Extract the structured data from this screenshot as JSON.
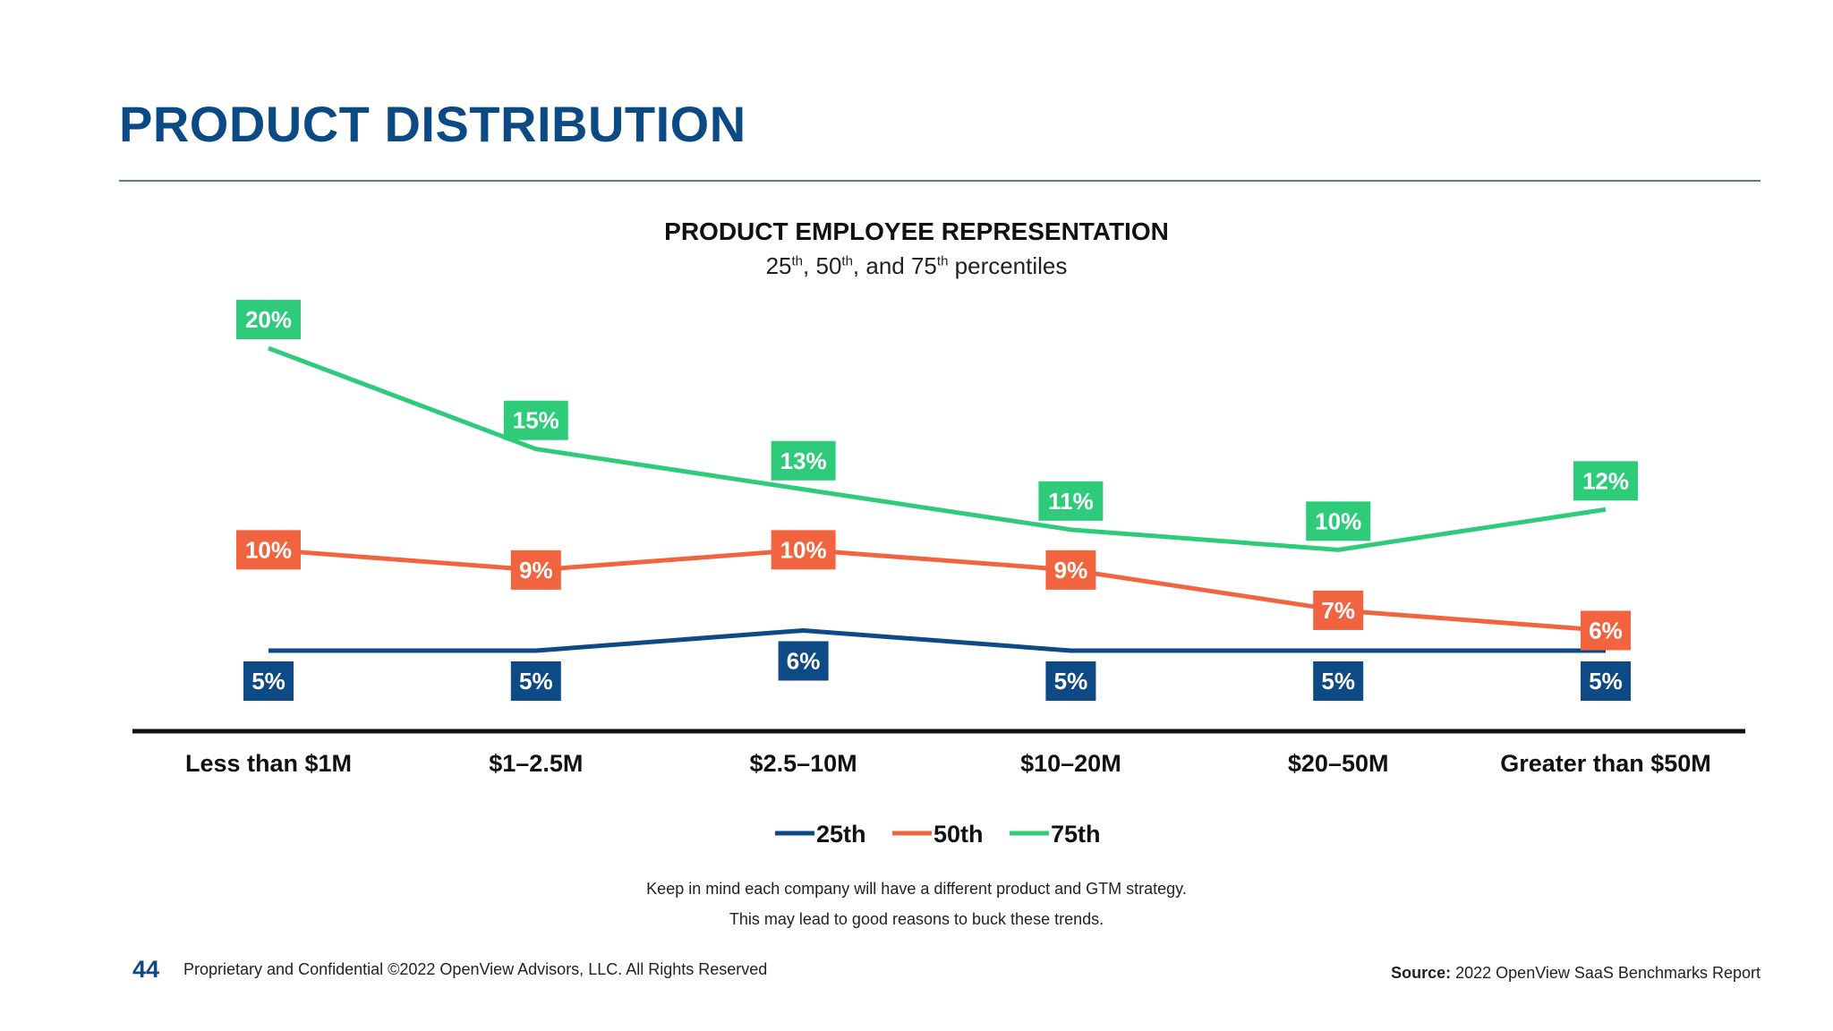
{
  "header": {
    "title": "PRODUCT DISTRIBUTION"
  },
  "chart_data": {
    "type": "line",
    "title": "PRODUCT EMPLOYEE REPRESENTATION",
    "subtitle": {
      "a": "25",
      "b": "th",
      "c": ", 50",
      "d": "th",
      "e": ", and 75",
      "f": "th",
      "g": " percentiles"
    },
    "categories": [
      "Less than $1M",
      "$1–2.5M",
      "$2.5–10M",
      "$10–20M",
      "$20–50M",
      "Greater than $50M"
    ],
    "series": [
      {
        "name": "25th",
        "color": "#0d4a86",
        "values": [
          5,
          5,
          6,
          5,
          5,
          5
        ],
        "labels": [
          "5%",
          "5%",
          "6%",
          "5%",
          "5%",
          "5%"
        ]
      },
      {
        "name": "50th",
        "color": "#f26440",
        "values": [
          10,
          9,
          10,
          9,
          7,
          6
        ],
        "labels": [
          "10%",
          "9%",
          "10%",
          "9%",
          "7%",
          "6%"
        ]
      },
      {
        "name": "75th",
        "color": "#2ecc7a",
        "values": [
          20,
          15,
          13,
          11,
          10,
          12
        ],
        "labels": [
          "20%",
          "15%",
          "13%",
          "11%",
          "10%",
          "12%"
        ]
      }
    ],
    "value_unit": "%",
    "grid": false,
    "legend_position": "bottom"
  },
  "notes": [
    "Keep in mind each company will have a different product and GTM strategy.",
    "This may lead to good reasons to buck these trends."
  ],
  "footer": {
    "page": "44",
    "confidential": "Proprietary and Confidential ©2022 OpenView Advisors, LLC. All Rights Reserved",
    "source_label": "Source:",
    "source_text": " 2022 OpenView SaaS Benchmarks Report"
  }
}
